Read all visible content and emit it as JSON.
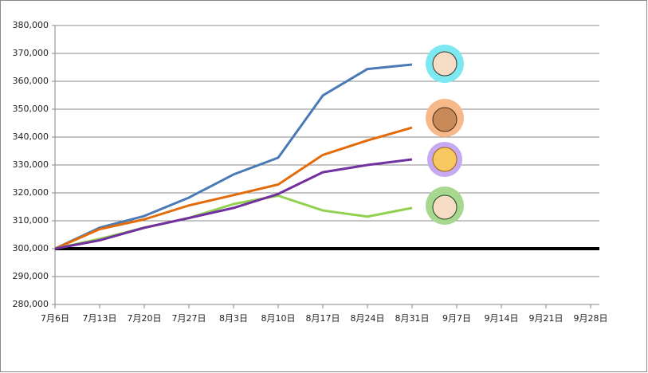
{
  "chart_data": {
    "type": "line",
    "categories": [
      "7月6日",
      "7月13日",
      "7月20日",
      "7月27日",
      "8月3日",
      "8月10日",
      "8月17日",
      "8月24日",
      "8月31日",
      "9月7日",
      "9月14日",
      "9月21日",
      "9月28日"
    ],
    "series": [
      {
        "color": "#4a7ab5",
        "values": [
          300000,
          307500,
          311700,
          318300,
          326600,
          332600,
          354900,
          364400,
          366000,
          null,
          null,
          null,
          null
        ]
      },
      {
        "color": "#e36c0a",
        "values": [
          300000,
          307000,
          310500,
          315500,
          319200,
          323000,
          333600,
          338800,
          343400,
          null,
          null,
          null,
          null
        ]
      },
      {
        "color": "#92d050",
        "values": [
          300000,
          303500,
          307500,
          311000,
          316000,
          319000,
          313700,
          311500,
          314600,
          null,
          null,
          null,
          null
        ]
      },
      {
        "color": "#7030a0",
        "values": [
          300000,
          303000,
          307500,
          311000,
          314600,
          319600,
          327400,
          330000,
          332000,
          null,
          null,
          null,
          null
        ]
      }
    ],
    "reference_line": {
      "value": 300000,
      "color": "#000000"
    },
    "ylim": [
      280000,
      380000
    ],
    "yticks": [
      {
        "value": 280000,
        "label": "280,000"
      },
      {
        "value": 290000,
        "label": "290,000"
      },
      {
        "value": 300000,
        "label": "300,000"
      },
      {
        "value": 310000,
        "label": "310,000"
      },
      {
        "value": 320000,
        "label": "320,000"
      },
      {
        "value": 330000,
        "label": "330,000"
      },
      {
        "value": 340000,
        "label": "340,000"
      },
      {
        "value": 350000,
        "label": "350,000"
      },
      {
        "value": 360000,
        "label": "360,000"
      },
      {
        "value": 370000,
        "label": "370,000"
      },
      {
        "value": 380000,
        "label": "380,000"
      }
    ],
    "grid": true
  }
}
